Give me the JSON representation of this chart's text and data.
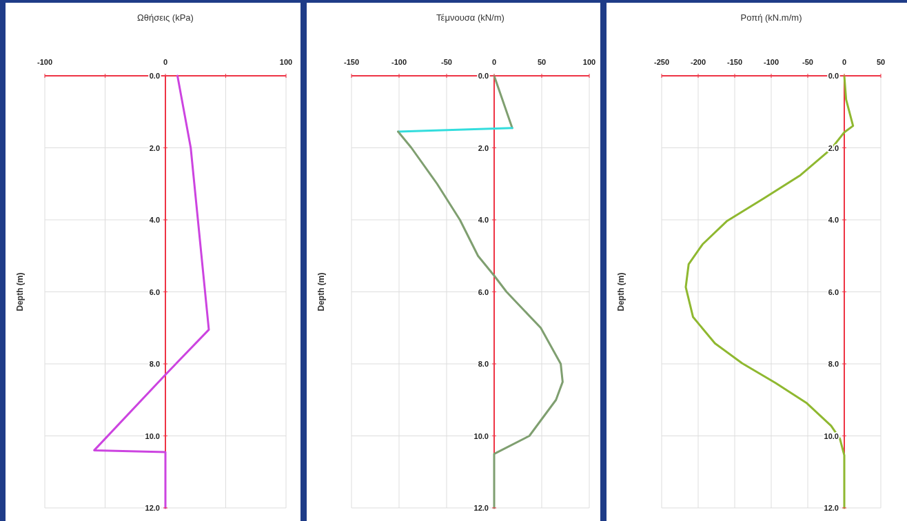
{
  "chart_data": [
    {
      "type": "line",
      "title": "Ωθήσεις (kPa)",
      "ylabel": "Depth (m)",
      "xlim": [
        -100,
        100
      ],
      "xticks": [
        -100,
        {
          "value": -50,
          "label": null
        },
        0,
        {
          "value": 50,
          "label": null
        },
        100
      ],
      "ylim": [
        12,
        0
      ],
      "yticks": [
        {
          "value": 0,
          "label": "0.0"
        },
        {
          "value": 2,
          "label": "2.0"
        },
        {
          "value": 4,
          "label": "4.0"
        },
        {
          "value": 6,
          "label": "6.0"
        },
        {
          "value": 8,
          "label": "8.0"
        },
        {
          "value": 10,
          "label": "10.0"
        },
        {
          "value": 12,
          "label": "12.0"
        }
      ],
      "grid": true,
      "marker": "none",
      "line_style": "solid",
      "series": [
        {
          "color": "#cc44e0",
          "x": [
            10,
            21,
            36,
            0,
            -59,
            0,
            0
          ],
          "values": [
            0,
            2,
            7.05,
            8.3,
            10.4,
            10.45,
            12
          ]
        }
      ]
    },
    {
      "type": "line",
      "title": "Τέμνουσα (kN/m)",
      "ylabel": "Depth (m)",
      "xlim": [
        -150,
        100
      ],
      "xticks": [
        -150,
        -100,
        -50,
        0,
        50,
        100
      ],
      "ylim": [
        12,
        0
      ],
      "yticks": [
        {
          "value": 0,
          "label": "0.0"
        },
        {
          "value": 2,
          "label": "2.0"
        },
        {
          "value": 4,
          "label": "4.0"
        },
        {
          "value": 6,
          "label": "6.0"
        },
        {
          "value": 8,
          "label": "8.0"
        },
        {
          "value": 10,
          "label": "10.0"
        },
        {
          "value": 12,
          "label": "12.0"
        }
      ],
      "grid": true,
      "marker": "none",
      "line_style": "solid",
      "series": [
        {
          "color": "#7f9f70",
          "x": [
            0,
            19
          ],
          "values": [
            0,
            1.45
          ]
        },
        {
          "color": "#33dddd",
          "x": [
            19,
            -101
          ],
          "values": [
            1.45,
            1.55
          ]
        },
        {
          "color": "#7f9f70",
          "x": [
            -101,
            -87,
            -60,
            -36,
            -17,
            0,
            13,
            49,
            70,
            72,
            65,
            37,
            0,
            0
          ],
          "values": [
            1.55,
            2,
            3,
            4,
            5,
            5.55,
            6,
            7,
            8,
            8.5,
            9,
            10,
            10.5,
            12
          ]
        }
      ]
    },
    {
      "type": "line",
      "title": "Ροπή (kN.m/m)",
      "ylabel": "Depth (m)",
      "xlim": [
        -250,
        50
      ],
      "xticks": [
        -250,
        -200,
        -150,
        -100,
        -50,
        0,
        50
      ],
      "ylim": [
        12,
        0
      ],
      "yticks": [
        {
          "value": 0,
          "label": "0.0"
        },
        {
          "value": 2,
          "label": "2.0"
        },
        {
          "value": 4,
          "label": "4.0"
        },
        {
          "value": 6,
          "label": "6.0"
        },
        {
          "value": 8,
          "label": "8.0"
        },
        {
          "value": 10,
          "label": "10.0"
        },
        {
          "value": 12,
          "label": "12.0"
        }
      ],
      "grid": true,
      "marker": "none",
      "line_style": "solid",
      "series": [
        {
          "color": "#8fb830",
          "x": [
            0,
            2.5,
            12,
            0,
            -18,
            -60,
            -110,
            -161,
            -194,
            -213,
            -217,
            -207,
            -177,
            -140,
            -94,
            -52,
            -18,
            -6,
            0,
            0
          ],
          "values": [
            0,
            0.66,
            1.39,
            1.57,
            2.03,
            2.76,
            3.4,
            4.04,
            4.68,
            5.23,
            5.87,
            6.7,
            7.43,
            7.98,
            8.53,
            9.08,
            9.72,
            10.08,
            10.54,
            12
          ]
        }
      ]
    }
  ]
}
